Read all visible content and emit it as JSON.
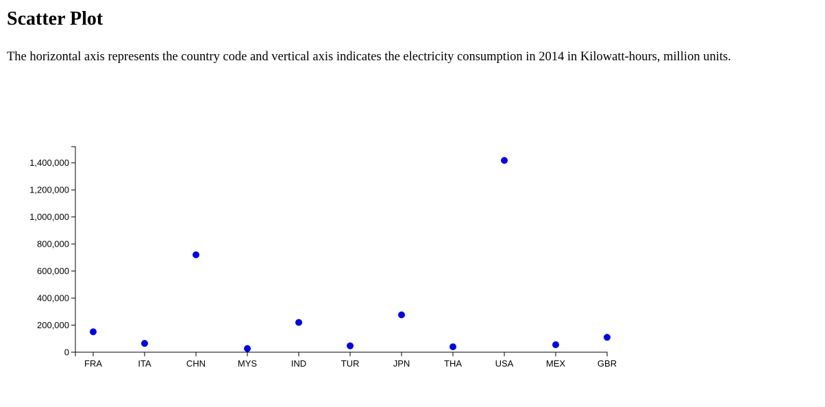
{
  "page": {
    "title": "Scatter Plot",
    "description": "The horizontal axis represents the country code and vertical axis indicates the electricity consumption in 2014 in Kilowatt-hours, million units."
  },
  "chart_data": {
    "type": "scatter",
    "categories": [
      "FRA",
      "ITA",
      "CHN",
      "MYS",
      "IND",
      "TUR",
      "JPN",
      "THA",
      "USA",
      "MEX",
      "GBR"
    ],
    "values": [
      151000,
      65000,
      720000,
      27000,
      220000,
      47000,
      276000,
      40000,
      1418000,
      55000,
      110000
    ],
    "xlabel": "",
    "ylabel": "",
    "ylim": [
      0,
      1520000
    ],
    "yticks": [
      0,
      200000,
      400000,
      600000,
      800000,
      1000000,
      1200000,
      1400000
    ],
    "ytick_labels": [
      "0",
      "200,000",
      "400,000",
      "600,000",
      "800,000",
      "1,000,000",
      "1,200,000",
      "1,400,000"
    ],
    "point_color": "#0000ee",
    "axis_color": "#000000",
    "grid": false,
    "legend": "none"
  }
}
